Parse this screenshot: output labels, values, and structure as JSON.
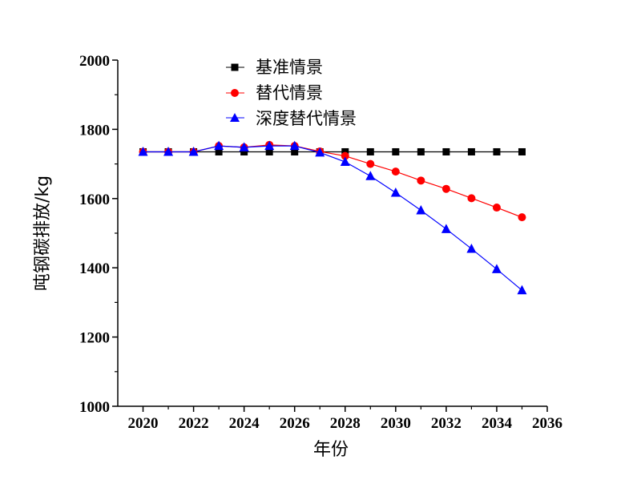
{
  "chart_data": {
    "type": "line",
    "title": "",
    "xlabel": "年份",
    "ylabel": "吨钢碳排放/kg",
    "xlim": [
      2019,
      2036
    ],
    "ylim": [
      1000,
      2000
    ],
    "xticks": [
      2020,
      2022,
      2024,
      2026,
      2028,
      2030,
      2032,
      2034,
      2036
    ],
    "yticks": [
      1000,
      1200,
      1400,
      1600,
      1800,
      2000
    ],
    "grid": false,
    "legend_position": "top-center",
    "x": [
      2020,
      2021,
      2022,
      2023,
      2024,
      2025,
      2026,
      2027,
      2028,
      2029,
      2030,
      2031,
      2032,
      2033,
      2034,
      2035
    ],
    "series": [
      {
        "name": "基准情景",
        "color": "#000000",
        "marker": "square",
        "values": [
          1735,
          1735,
          1735,
          1735,
          1735,
          1735,
          1735,
          1735,
          1735,
          1735,
          1735,
          1735,
          1735,
          1735,
          1735,
          1735
        ]
      },
      {
        "name": "替代情景",
        "color": "#ff0000",
        "marker": "circle",
        "values": [
          1735,
          1735,
          1735,
          1752,
          1748,
          1755,
          1752,
          1736,
          1723,
          1700,
          1678,
          1652,
          1628,
          1601,
          1574,
          1546
        ]
      },
      {
        "name": "深度替代情景",
        "color": "#0000ff",
        "marker": "triangle",
        "values": [
          1735,
          1735,
          1735,
          1752,
          1748,
          1752,
          1752,
          1733,
          1706,
          1665,
          1617,
          1566,
          1512,
          1455,
          1396,
          1335
        ]
      }
    ]
  }
}
